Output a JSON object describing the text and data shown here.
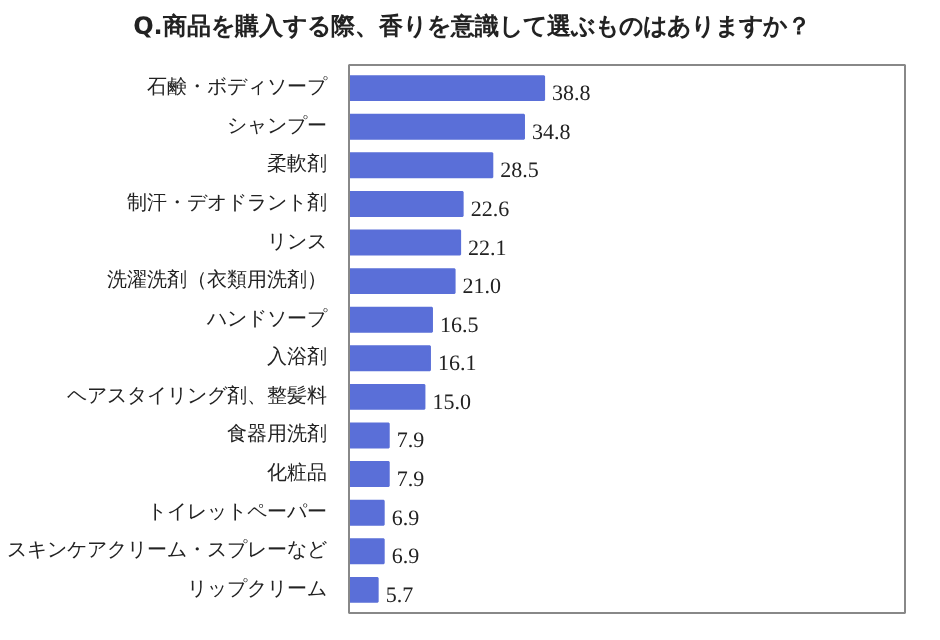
{
  "chart_data": {
    "type": "bar",
    "orientation": "horizontal",
    "title": "Q.商品を購入する際、香りを意識して選ぶものはありますか？",
    "categories": [
      "石鹸・ボディソープ",
      "シャンプー",
      "柔軟剤",
      "制汗・デオドラント剤",
      "リンス",
      "洗濯洗剤（衣類用洗剤）",
      "ハンドソープ",
      "入浴剤",
      "ヘアスタイリング剤、整髪料",
      "食器用洗剤",
      "化粧品",
      "トイレットペーパー",
      "スキンケアクリーム・スプレーなど",
      "リップクリーム"
    ],
    "values": [
      38.8,
      34.8,
      28.5,
      22.6,
      22.1,
      21.0,
      16.5,
      16.1,
      15.0,
      7.9,
      7.9,
      6.9,
      6.9,
      5.7
    ],
    "value_labels": [
      "38.8",
      "34.8",
      "28.5",
      "22.6",
      "22.1",
      "21.0",
      "16.5",
      "16.1",
      "15.0",
      "7.9",
      "7.9",
      "6.9",
      "6.9",
      "5.7"
    ],
    "color": "#5a6fd8",
    "grid": false
  }
}
